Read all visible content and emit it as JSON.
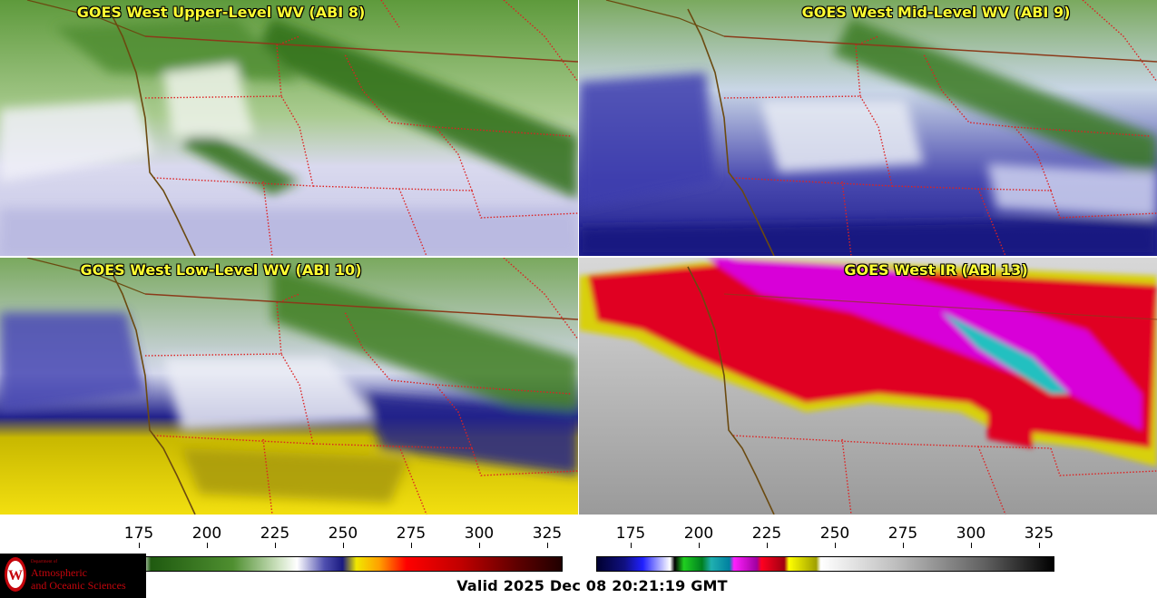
{
  "panels": [
    {
      "title": "GOES West Upper-Level WV (ABI 8)",
      "palette": "wv"
    },
    {
      "title": "GOES West Mid-Level WV (ABI 9)",
      "palette": "wv"
    },
    {
      "title": "GOES West Low-Level WV (ABI 10)",
      "palette": "wv"
    },
    {
      "title": "GOES West IR (ABI 13)",
      "palette": "ir"
    }
  ],
  "colorbars": {
    "wv": {
      "ticks": [
        "175",
        "200",
        "225",
        "250",
        "275",
        "300",
        "325"
      ]
    },
    "ir": {
      "ticks": [
        "175",
        "200",
        "225",
        "250",
        "275",
        "300",
        "325"
      ]
    }
  },
  "logo": {
    "dept": "Department of",
    "line1": "Atmospheric",
    "line2": "and Oceanic Sciences"
  },
  "footer": {
    "valid": "Valid 2025 Dec 08 20:21:19 GMT"
  },
  "colors": {
    "title": "#ffff33",
    "wv_green": "#3a7a1e",
    "wv_blue": "#1a1a8a",
    "wv_yellow": "#f0e000",
    "ir_red": "#e00020",
    "ir_magenta": "#e000e0",
    "state_border": "#dd2222",
    "coast": "#6b4a10"
  }
}
